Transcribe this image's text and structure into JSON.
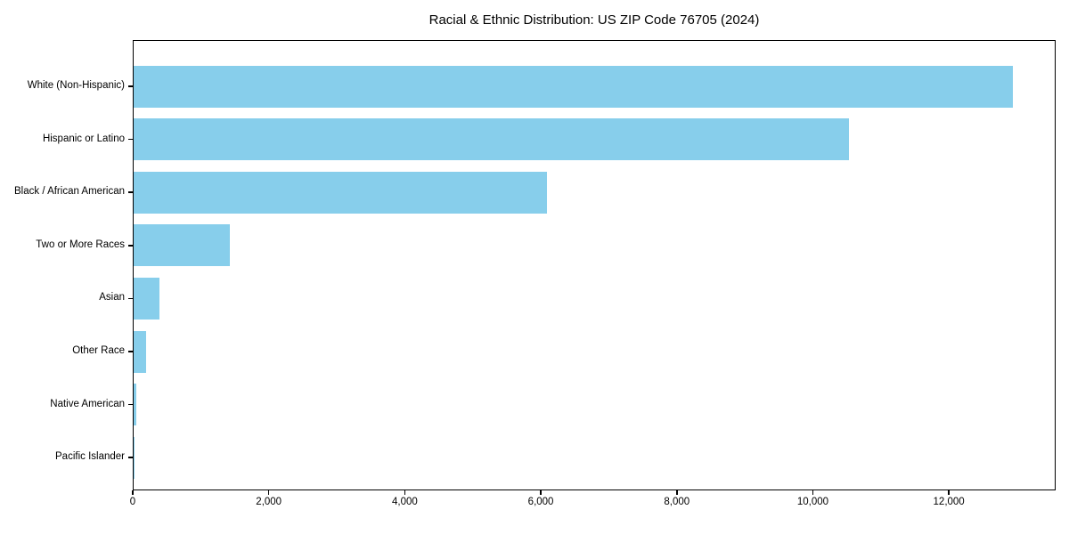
{
  "chart_data": {
    "type": "bar",
    "orientation": "horizontal",
    "title": "Racial & Ethnic Distribution: US ZIP Code 76705 (2024)",
    "categories": [
      "White (Non-Hispanic)",
      "Hispanic or Latino",
      "Black / African American",
      "Two or More Races",
      "Asian",
      "Other Race",
      "Native American",
      "Pacific Islander"
    ],
    "values": [
      12930,
      10520,
      6080,
      1415,
      380,
      185,
      35,
      10
    ],
    "xlabel": "",
    "ylabel": "",
    "xlim": [
      0,
      13570
    ],
    "xticks": {
      "values": [
        0,
        2000,
        4000,
        6000,
        8000,
        10000,
        12000
      ],
      "labels": [
        "0",
        "2,000",
        "4,000",
        "6,000",
        "8,000",
        "10,000",
        "12,000"
      ]
    },
    "bar_color": "#87CEEB",
    "grid": false,
    "legend_position": "none"
  }
}
